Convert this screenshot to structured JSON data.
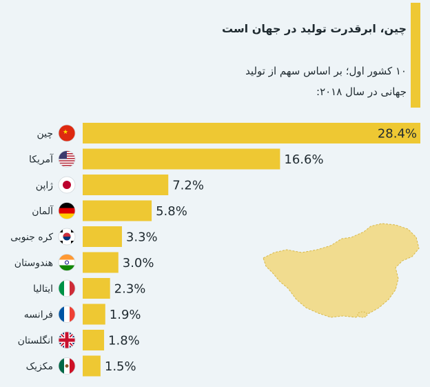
{
  "header": {
    "title": "چین، ابرقدرت تولید در جهان است",
    "subtitle": "۱۰ کشور اول؛ بر اساس سهم از تولید جهانی در سال ۲۰۱۸:"
  },
  "colors": {
    "bar": "#eec833",
    "background": "#eef4f7",
    "text": "#1f2a30"
  },
  "chart_data": {
    "type": "bar",
    "orientation": "horizontal",
    "title": "چین، ابرقدرت تولید در جهان است",
    "subtitle": "۱۰ کشور اول؛ بر اساس سهم از تولید جهانی در سال ۲۰۱۸:",
    "categories": [
      "چین",
      "آمریکا",
      "ژاپن",
      "آلمان",
      "کره جنوبی",
      "هندوستان",
      "ایتالیا",
      "فرانسه",
      "انگلستان",
      "مکزیک"
    ],
    "flags": [
      "china-flag-icon",
      "usa-flag-icon",
      "japan-flag-icon",
      "germany-flag-icon",
      "south-korea-flag-icon",
      "india-flag-icon",
      "italy-flag-icon",
      "france-flag-icon",
      "uk-flag-icon",
      "mexico-flag-icon"
    ],
    "values": [
      28.4,
      16.6,
      7.2,
      5.8,
      3.3,
      3.0,
      2.3,
      1.9,
      1.8,
      1.5
    ],
    "value_labels": [
      "28.4%",
      "16.6%",
      "7.2%",
      "5.8%",
      "3.3%",
      "3.0%",
      "2.3%",
      "1.9%",
      "1.8%",
      "1.5%"
    ],
    "xlim": [
      0,
      28.4
    ],
    "grid": false,
    "legend": "none"
  }
}
